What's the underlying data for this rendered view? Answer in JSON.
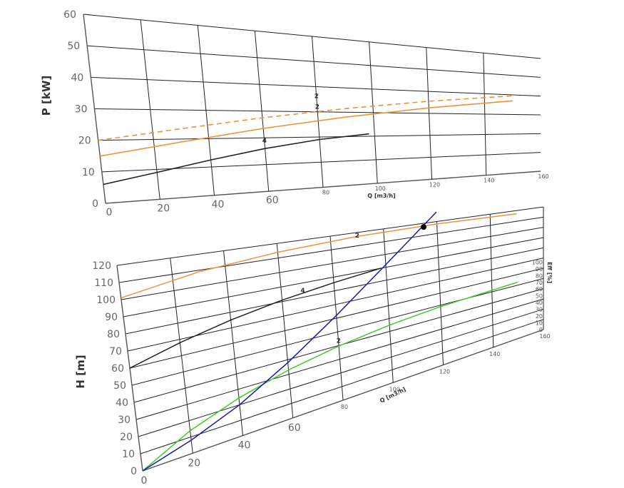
{
  "chart_data": [
    {
      "type": "line",
      "ylabel": "P [kW]",
      "xlabel": "Q [m3/h]",
      "xlim": [
        0,
        160
      ],
      "ylim": [
        0,
        60
      ],
      "x_ticks": [
        "0",
        "20",
        "40",
        "60",
        "80",
        "100",
        "120",
        "140",
        "160"
      ],
      "y_ticks": [
        "0",
        "10",
        "20",
        "30",
        "40",
        "50",
        "60"
      ],
      "series": [
        {
          "label": "2",
          "style": "dashed",
          "color": "#f0913a",
          "x": [
            0,
            30,
            60,
            90,
            120,
            150
          ],
          "y": [
            20,
            23.5,
            27.5,
            31.5,
            35.5,
            39.5
          ]
        },
        {
          "label": "2",
          "style": "solid",
          "color": "#f0913a",
          "x": [
            0,
            30,
            60,
            90,
            120,
            150
          ],
          "y": [
            15,
            19,
            23.5,
            28,
            32.5,
            37
          ]
        },
        {
          "label": "4",
          "style": "solid",
          "color": "#222222",
          "x": [
            0,
            20,
            40,
            60,
            80,
            98
          ],
          "y": [
            6,
            9,
            12.5,
            16,
            19,
            21
          ]
        }
      ]
    },
    {
      "type": "line",
      "ylabel": "H [m]",
      "xlabel": "Q [m3/h]",
      "y2label": "Eff [%]",
      "xlim": [
        0,
        160
      ],
      "ylim": [
        0,
        120
      ],
      "y2lim": [
        0,
        100
      ],
      "x_ticks": [
        "0",
        "20",
        "40",
        "60",
        "80",
        "100",
        "120",
        "140",
        "160"
      ],
      "y_ticks": [
        "0",
        "10",
        "20",
        "30",
        "40",
        "50",
        "60",
        "70",
        "80",
        "90",
        "100",
        "110",
        "120"
      ],
      "y2_ticks": [
        "0",
        "10",
        "20",
        "30",
        "40",
        "50",
        "60",
        "70",
        "80",
        "90",
        "100"
      ],
      "operating_point": {
        "x": 115,
        "y": 117
      },
      "series": [
        {
          "label": "2",
          "style": "solid",
          "color": "#f0913a",
          "x": [
            0,
            30,
            60,
            90,
            120,
            150
          ],
          "y": [
            101,
            109,
            114,
            117,
            118,
            117
          ]
        },
        {
          "label": "4",
          "style": "solid",
          "color": "#222222",
          "x": [
            0,
            20,
            40,
            60,
            80,
            98
          ],
          "y": [
            60,
            68,
            75,
            81,
            86,
            90
          ]
        },
        {
          "label": "2",
          "style": "solid",
          "color": "#44c82b",
          "axis": "eff",
          "x": [
            0,
            20,
            40,
            60,
            80,
            100,
            120,
            150
          ],
          "y": [
            0,
            21,
            37,
            50,
            60,
            68,
            74,
            80
          ]
        },
        {
          "label": "",
          "style": "solid",
          "color": "#1a1aa0",
          "x": [
            0,
            20,
            40,
            60,
            80,
            100,
            120
          ],
          "y": [
            0,
            8,
            20,
            38,
            62,
            92,
            128
          ]
        }
      ]
    }
  ]
}
